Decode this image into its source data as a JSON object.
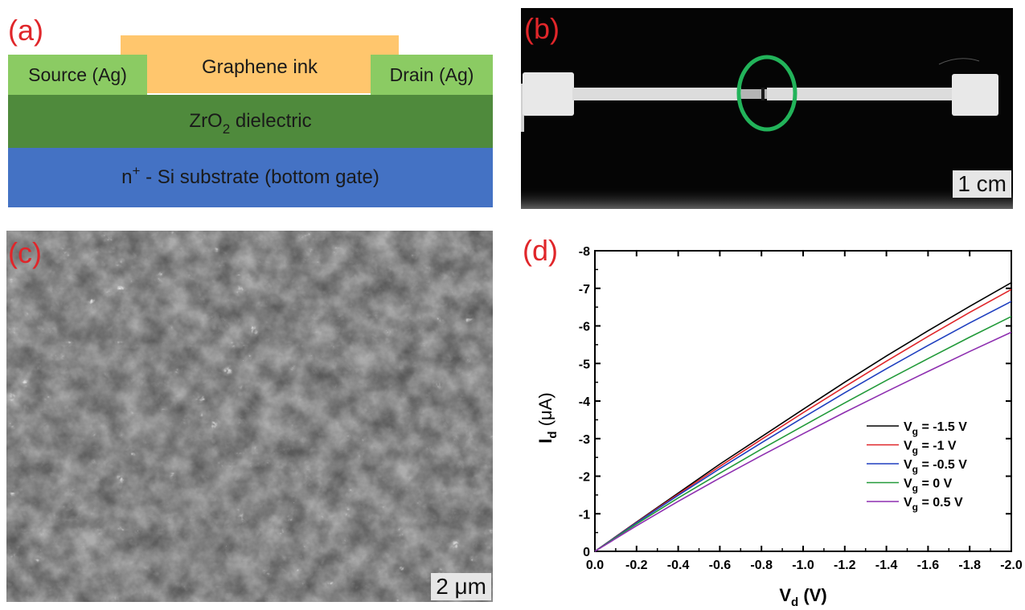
{
  "panel_a": {
    "label": "(a)",
    "graphene": "Graphene ink",
    "source": "Source (Ag)",
    "drain": "Drain (Ag)",
    "dielectric_pre": "ZrO",
    "dielectric_sub": "2",
    "dielectric_post": " dielectric",
    "substrate_pre": "n",
    "substrate_sup": "+",
    "substrate_post": " - Si substrate (bottom gate)",
    "colors": {
      "graphene": "#ffc66d",
      "electrode": "#8bcb63",
      "dielectric": "#4f8a3c",
      "substrate": "#4472c4"
    }
  },
  "panel_b": {
    "label": "(b)",
    "scale": "1 cm",
    "highlight_color": "#22b35a"
  },
  "panel_c": {
    "label": "(c)",
    "scale": "2 μm"
  },
  "panel_d": {
    "label": "(d)",
    "chart_data": {
      "type": "line",
      "xlabel_main": "V",
      "xlabel_sub": "d",
      "xlabel_unit": " (V)",
      "ylabel_main": "I",
      "ylabel_sub": "d",
      "ylabel_unit": " (μA)",
      "xlim": [
        0.0,
        -2.0
      ],
      "ylim": [
        0,
        -8
      ],
      "x_ticks": [
        "0.0",
        "-0.2",
        "-0.4",
        "-0.6",
        "-0.8",
        "-1.0",
        "-1.2",
        "-1.4",
        "-1.6",
        "-1.8",
        "-2.0"
      ],
      "y_ticks": [
        "0",
        "-1",
        "-2",
        "-3",
        "-4",
        "-5",
        "-6",
        "-7",
        "-8"
      ],
      "legend_position": "lower-right",
      "series": [
        {
          "name_main": "V",
          "name_sub": "g",
          "name_rest": " = -1.5 V",
          "color": "#000000",
          "x": [
            0.0,
            -0.2,
            -0.4,
            -0.6,
            -0.8,
            -1.0,
            -1.2,
            -1.4,
            -1.6,
            -1.8,
            -2.0
          ],
          "y": [
            0,
            -0.78,
            -1.55,
            -2.32,
            -3.05,
            -3.78,
            -4.5,
            -5.2,
            -5.87,
            -6.52,
            -7.15
          ]
        },
        {
          "name_main": "V",
          "name_sub": "g",
          "name_rest": " = -1 V",
          "color": "#e0262a",
          "x": [
            0.0,
            -0.2,
            -0.4,
            -0.6,
            -0.8,
            -1.0,
            -1.2,
            -1.4,
            -1.6,
            -1.8,
            -2.0
          ],
          "y": [
            0,
            -0.77,
            -1.52,
            -2.26,
            -2.98,
            -3.69,
            -4.38,
            -5.06,
            -5.72,
            -6.36,
            -6.97
          ]
        },
        {
          "name_main": "V",
          "name_sub": "g",
          "name_rest": " = -0.5 V",
          "color": "#1f3fbf",
          "x": [
            0.0,
            -0.2,
            -0.4,
            -0.6,
            -0.8,
            -1.0,
            -1.2,
            -1.4,
            -1.6,
            -1.8,
            -2.0
          ],
          "y": [
            0,
            -0.76,
            -1.49,
            -2.2,
            -2.89,
            -3.56,
            -4.22,
            -4.86,
            -5.48,
            -6.08,
            -6.65
          ]
        },
        {
          "name_main": "V",
          "name_sub": "g",
          "name_rest": " = 0 V",
          "color": "#229a3a",
          "x": [
            0.0,
            -0.2,
            -0.4,
            -0.6,
            -0.8,
            -1.0,
            -1.2,
            -1.4,
            -1.6,
            -1.8,
            -2.0
          ],
          "y": [
            0,
            -0.73,
            -1.42,
            -2.08,
            -2.72,
            -3.34,
            -3.95,
            -4.55,
            -5.13,
            -5.7,
            -6.25
          ]
        },
        {
          "name_main": "V",
          "name_sub": "g",
          "name_rest": " = 0.5 V",
          "color": "#8e2fb0",
          "x": [
            0.0,
            -0.2,
            -0.4,
            -0.6,
            -0.8,
            -1.0,
            -1.2,
            -1.4,
            -1.6,
            -1.8,
            -2.0
          ],
          "y": [
            0,
            -0.68,
            -1.33,
            -1.95,
            -2.55,
            -3.13,
            -3.7,
            -4.25,
            -4.79,
            -5.32,
            -5.83
          ]
        }
      ]
    }
  }
}
